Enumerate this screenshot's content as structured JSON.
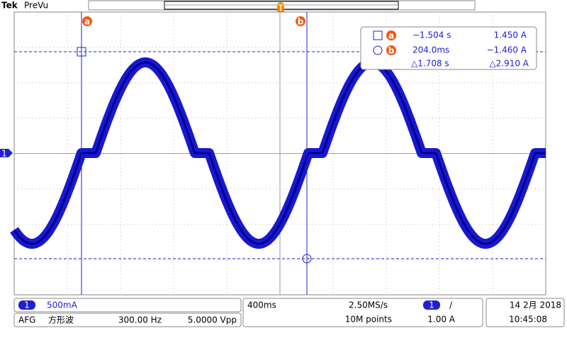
{
  "header": {
    "brand": "Tek",
    "mode": "PreVu"
  },
  "cursors": {
    "a_label": "a",
    "b_label": "b"
  },
  "channel_marker": "1",
  "trigger_marker": "T",
  "readout": {
    "a_time": "−1.504 s",
    "a_value": "1.450 A",
    "b_time": "204.0ms",
    "b_value": "−1.460 A",
    "delta_time": "△1.708 s",
    "delta_value": "△2.910 A"
  },
  "footer": {
    "channel": "1",
    "scale": "500mA",
    "afg": "AFG",
    "afg_wave": "方形波",
    "afg_freq": "300.00 Hz",
    "afg_amp": "5.0000 Vpp",
    "timebase": "400ms",
    "sample_rate": "2.50MS/s",
    "record": "10M points",
    "trigger_channel": "1",
    "trigger_slope": "/",
    "trigger_level": "1.00 A",
    "date": "14 2月 2018",
    "time": "10:45:08"
  }
}
